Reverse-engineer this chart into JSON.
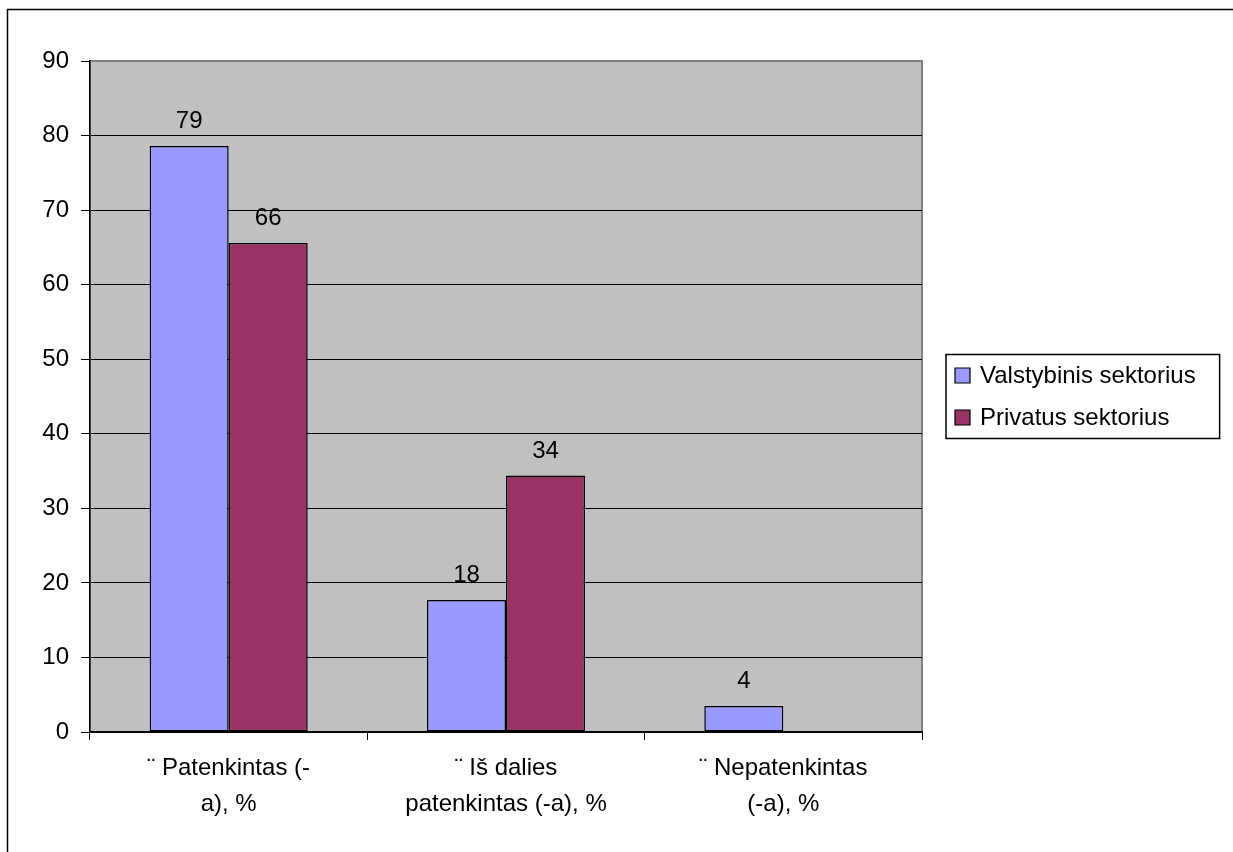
{
  "chart_data": {
    "type": "bar",
    "categories": [
      "¨ Patenkintas (-\na), %",
      "¨ Iš dalies\npatenkintas (-a), %",
      "¨ Nepatenkintas\n(-a), %"
    ],
    "series": [
      {
        "name": "Valstybinis sektorius",
        "color": "#9999ff",
        "values": [
          78.6,
          17.7,
          3.5
        ],
        "value_labels": [
          "79",
          "18",
          "4"
        ]
      },
      {
        "name": "Privatus sektorius",
        "color": "#993366",
        "values": [
          65.6,
          34.4,
          null
        ],
        "value_labels": [
          "66",
          "34",
          null
        ]
      }
    ],
    "ylim": [
      0,
      90
    ],
    "yticks": [
      0,
      10,
      20,
      30,
      40,
      50,
      60,
      70,
      80,
      90
    ],
    "grid": "y",
    "legend": "right"
  }
}
